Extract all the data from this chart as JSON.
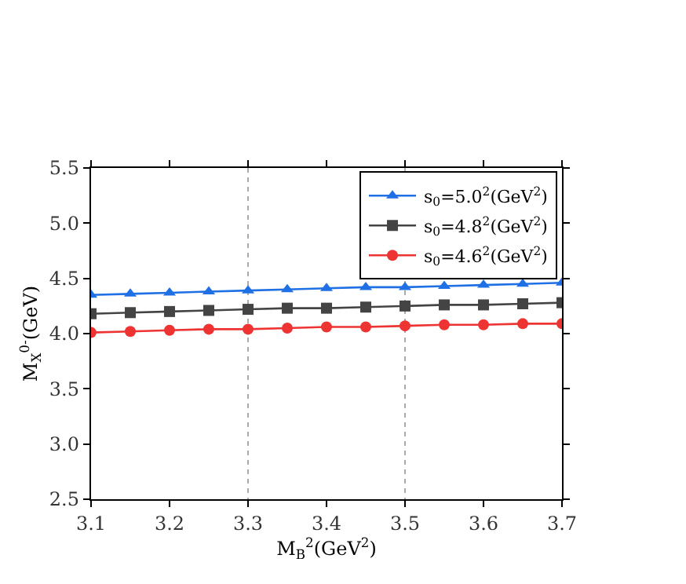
{
  "chart_data": {
    "type": "line",
    "xlabel": "M$_{B}$$^{2}$(GeV$^{2}$)",
    "ylabel": "M$_{X}$$^{0-}$(GeV)",
    "x": [
      3.1,
      3.15,
      3.2,
      3.25,
      3.3,
      3.35,
      3.4,
      3.45,
      3.5,
      3.55,
      3.6,
      3.65,
      3.7
    ],
    "series": [
      {
        "name": "s$_{0}$=5.0$^{2}$(GeV$^{2}$)",
        "color": "#1f6fe5",
        "marker": "triangle",
        "values": [
          4.35,
          4.36,
          4.37,
          4.38,
          4.39,
          4.4,
          4.41,
          4.42,
          4.42,
          4.43,
          4.44,
          4.45,
          4.46
        ]
      },
      {
        "name": "s$_{0}$=4.8$^{2}$(GeV$^{2}$)",
        "color": "#444444",
        "marker": "square",
        "values": [
          4.18,
          4.19,
          4.2,
          4.21,
          4.22,
          4.23,
          4.23,
          4.24,
          4.25,
          4.26,
          4.26,
          4.27,
          4.28
        ]
      },
      {
        "name": "s$_{0}$=4.6$^{2}$(GeV$^{2}$)",
        "color": "#ee3333",
        "marker": "circle",
        "values": [
          4.01,
          4.02,
          4.03,
          4.04,
          4.04,
          4.05,
          4.06,
          4.06,
          4.07,
          4.08,
          4.08,
          4.09,
          4.09
        ]
      }
    ],
    "xlim": [
      3.1,
      3.7
    ],
    "xticks": [
      3.1,
      3.2,
      3.3,
      3.4,
      3.5,
      3.6,
      3.7
    ],
    "ylim": [
      2.5,
      5.5
    ],
    "yticks": [
      2.5,
      {
        "value": 3,
        "label": "3.0"
      },
      3.5,
      {
        "value": 4,
        "label": "4.0"
      },
      4.5,
      {
        "value": 5,
        "label": "5.0"
      },
      5.5
    ],
    "grid": "x",
    "legend": "top right",
    "line_style": "solid"
  }
}
